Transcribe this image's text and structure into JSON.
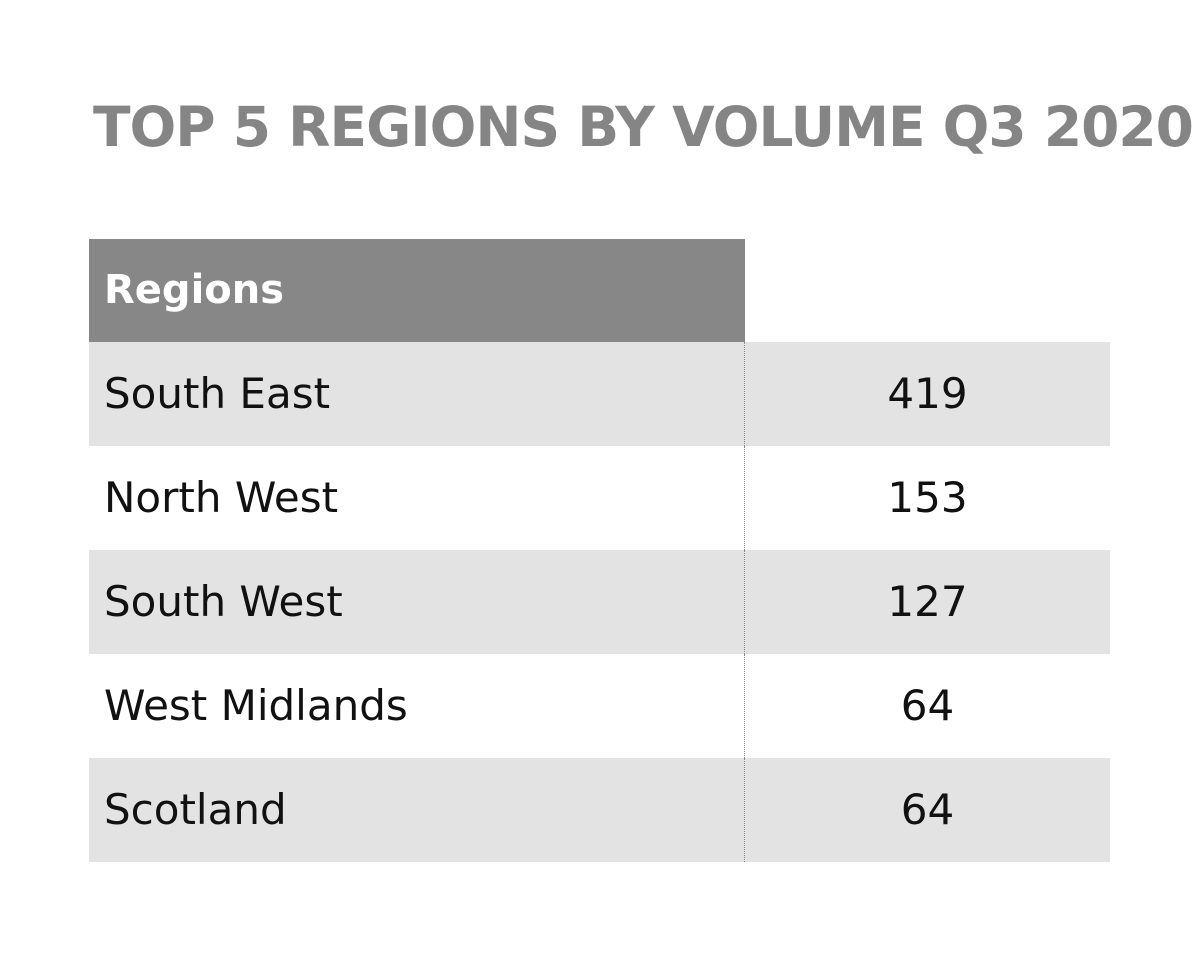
{
  "title": "TOP 5 REGIONS BY VOLUME Q3 2020",
  "chart_data": {
    "type": "table",
    "title": "TOP 5 REGIONS BY VOLUME Q3 2020",
    "columns": [
      "Regions",
      ""
    ],
    "rows": [
      {
        "region": "South East",
        "value": "419"
      },
      {
        "region": "North West",
        "value": "153"
      },
      {
        "region": "South West",
        "value": "127"
      },
      {
        "region": "West Midlands",
        "value": "64"
      },
      {
        "region": "Scotland",
        "value": "64"
      }
    ]
  },
  "colors": {
    "title": "#858585",
    "header_bg": "#878787",
    "row_shaded": "#e3e3e3",
    "row_plain": "#ffffff"
  }
}
